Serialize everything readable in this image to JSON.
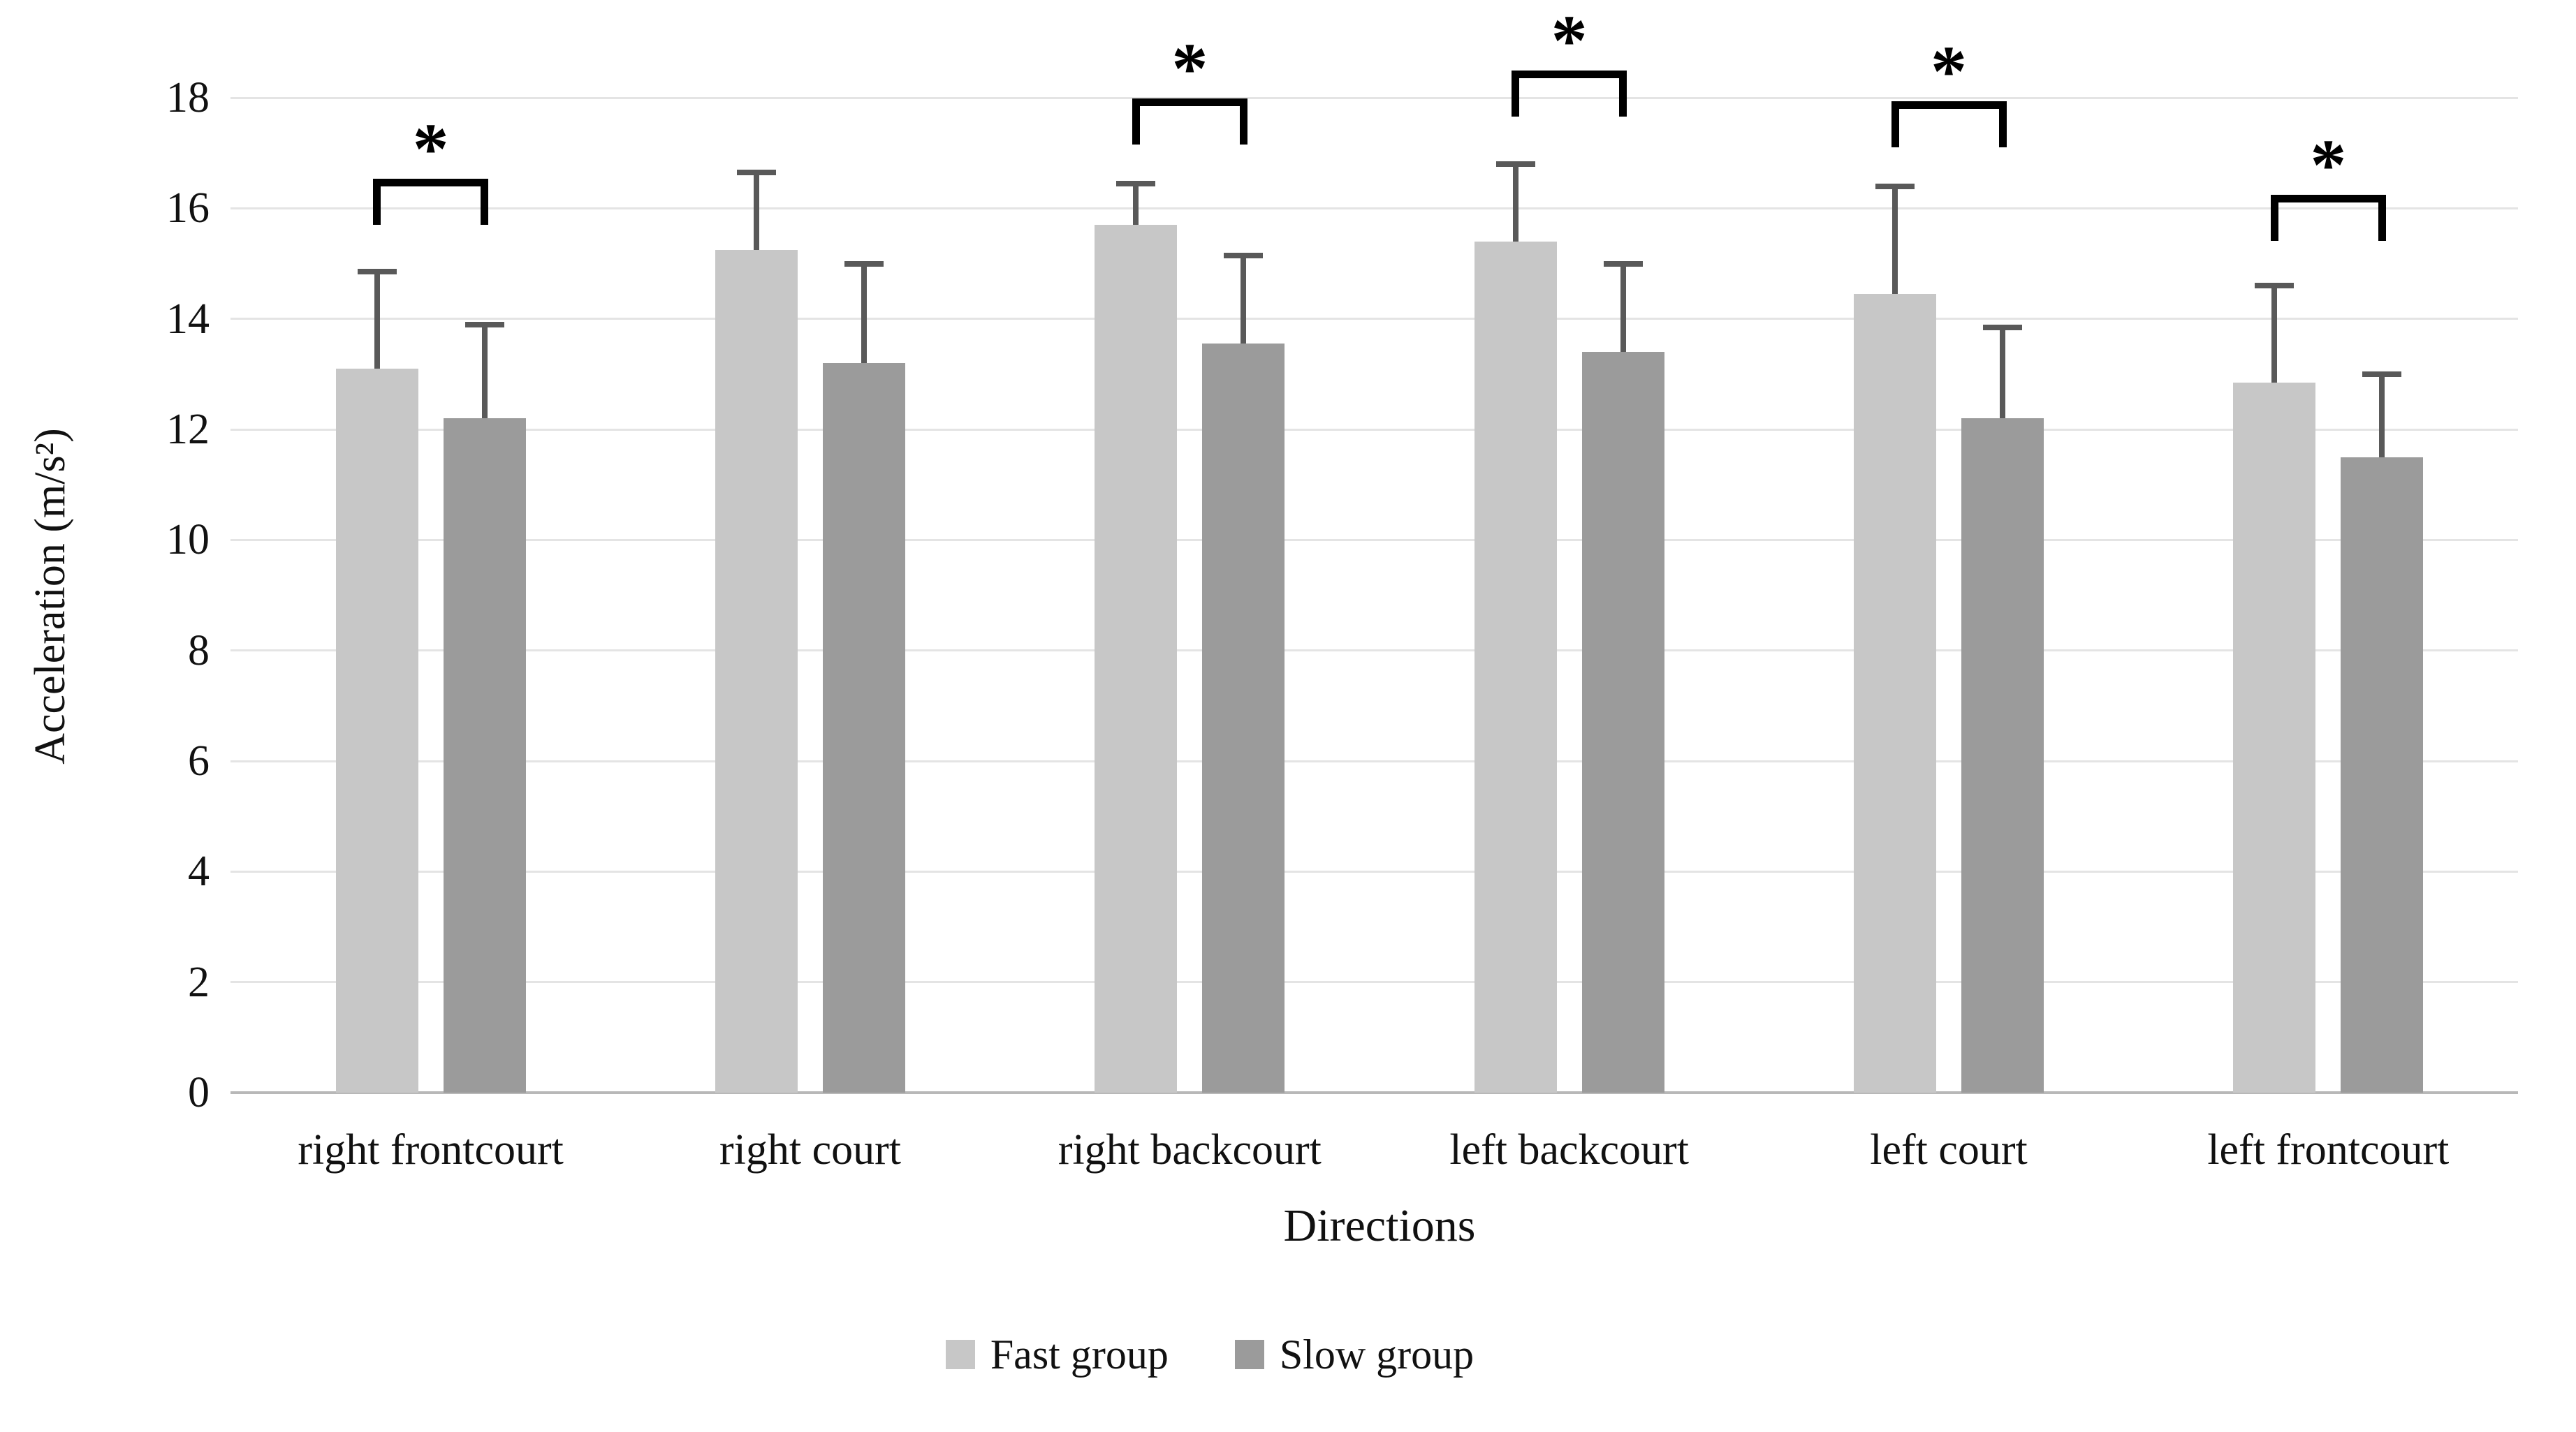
{
  "chart_data": {
    "type": "bar",
    "title": "",
    "categories": [
      "right frontcourt",
      "right court",
      "right backcourt",
      "left backcourt",
      "left court",
      "left frontcourt"
    ],
    "series": [
      {
        "name": "Fast group",
        "color": "#c7c7c7",
        "values": [
          13.1,
          15.25,
          15.7,
          15.4,
          14.45,
          12.85
        ],
        "error_plus": [
          1.75,
          1.4,
          0.75,
          1.4,
          1.95,
          1.75
        ]
      },
      {
        "name": "Slow group",
        "color": "#9b9b9b",
        "values": [
          12.2,
          13.2,
          13.55,
          13.4,
          12.2,
          11.5
        ],
        "error_plus": [
          1.7,
          1.8,
          1.6,
          1.6,
          1.65,
          1.5
        ]
      }
    ],
    "significance": [
      {
        "category": "right frontcourt",
        "category_index": 0,
        "bracket_top_value": 16.4,
        "label": "*"
      },
      {
        "category": "right backcourt",
        "category_index": 2,
        "bracket_top_value": 17.85,
        "label": "*"
      },
      {
        "category": "left backcourt",
        "category_index": 3,
        "bracket_top_value": 18.35,
        "label": "*"
      },
      {
        "category": "left court",
        "category_index": 4,
        "bracket_top_value": 17.8,
        "label": "*"
      },
      {
        "category": "left frontcourt",
        "category_index": 5,
        "bracket_top_value": 16.1,
        "label": "*"
      }
    ],
    "xlabel": "Directions",
    "ylabel": "Acceleration (m/s²)",
    "ylim": [
      0,
      18
    ],
    "yticks": [
      0,
      2,
      4,
      6,
      8,
      10,
      12,
      14,
      16,
      18
    ],
    "grid": true,
    "legend_position": "bottom",
    "colors": {
      "error_bar": "#595959",
      "gridline": "#e4e4e4",
      "axis_line": "#b8b8b8",
      "significance": "#000000",
      "text": "#111111",
      "background": "#ffffff"
    }
  }
}
